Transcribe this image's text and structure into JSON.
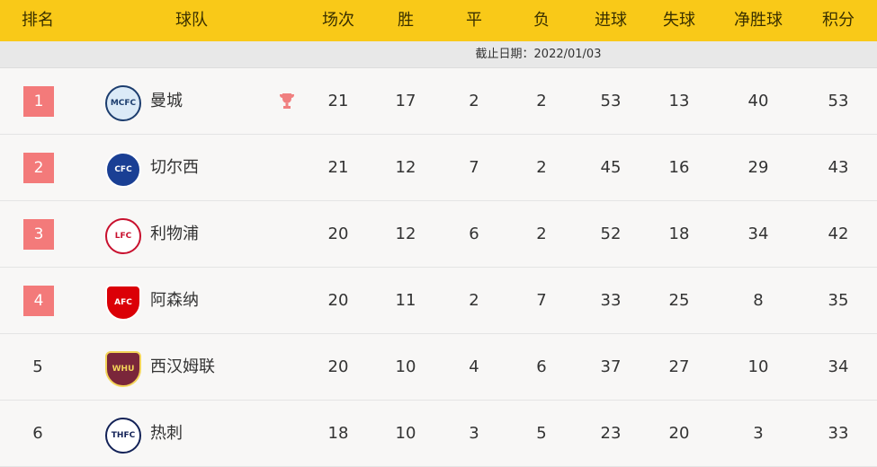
{
  "header": [
    "排名",
    "球队",
    "场次",
    "胜",
    "平",
    "负",
    "进球",
    "失球",
    "净胜球",
    "积分"
  ],
  "cutoff": "截止日期：2022/01/03",
  "colors": {
    "header": "#f9c918",
    "badge": "#f37a7a"
  },
  "rows": [
    {
      "rank": "1",
      "team": "曼城",
      "logo": "man-city-crest",
      "leader": true,
      "p": "21",
      "w": "17",
      "d": "2",
      "l": "2",
      "gf": "53",
      "ga": "13",
      "gd": "40",
      "pts": "53"
    },
    {
      "rank": "2",
      "team": "切尔西",
      "logo": "chelsea-crest",
      "p": "21",
      "w": "12",
      "d": "7",
      "l": "2",
      "gf": "45",
      "ga": "16",
      "gd": "29",
      "pts": "43"
    },
    {
      "rank": "3",
      "team": "利物浦",
      "logo": "liverpool-crest",
      "p": "20",
      "w": "12",
      "d": "6",
      "l": "2",
      "gf": "52",
      "ga": "18",
      "gd": "34",
      "pts": "42"
    },
    {
      "rank": "4",
      "team": "阿森纳",
      "logo": "arsenal-crest",
      "p": "20",
      "w": "11",
      "d": "2",
      "l": "7",
      "gf": "33",
      "ga": "25",
      "gd": "8",
      "pts": "35"
    },
    {
      "rank": "5",
      "team": "西汉姆联",
      "logo": "west-ham-crest",
      "p": "20",
      "w": "10",
      "d": "4",
      "l": "6",
      "gf": "37",
      "ga": "27",
      "gd": "10",
      "pts": "34"
    },
    {
      "rank": "6",
      "team": "热刺",
      "logo": "tottenham-crest",
      "p": "18",
      "w": "10",
      "d": "3",
      "l": "5",
      "gf": "23",
      "ga": "20",
      "gd": "3",
      "pts": "33"
    }
  ]
}
